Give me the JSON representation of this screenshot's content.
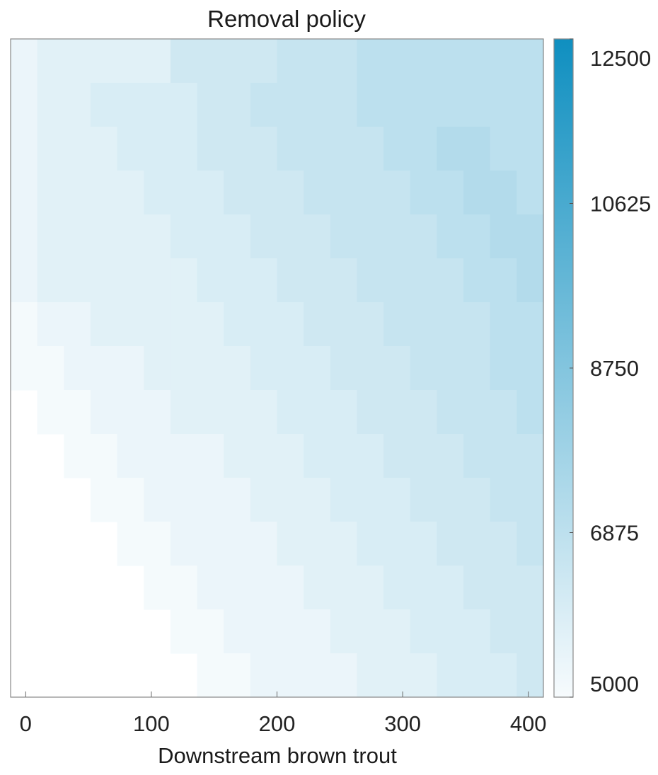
{
  "chart_data": {
    "type": "heatmap",
    "title": "Removal policy",
    "xlabel": "Downstream brown trout",
    "ylabel": "",
    "x_ticks": [
      0,
      100,
      200,
      300,
      400
    ],
    "x_range": [
      -12,
      412
    ],
    "colorbar": {
      "range": [
        5000,
        12500
      ],
      "ticks": [
        5000,
        6875,
        8750,
        10625,
        12500
      ],
      "color_low": "#f7fbfd",
      "color_high": "#0f8fc0"
    },
    "grid": "off",
    "colorbar_position": "right",
    "color_scale_note": "blank cells (lower-left) have no value",
    "rows_top_to_bottom": 15,
    "bands": {
      "boundaries_x": [
        12,
        34,
        56,
        78,
        100,
        122,
        144,
        166,
        188,
        210,
        232,
        254,
        276,
        298,
        320,
        342,
        364,
        386
      ],
      "band_values": [
        5300,
        5600,
        5800,
        6000,
        6200,
        6400,
        6600,
        6800,
        7000,
        7200,
        7400,
        7600,
        7800,
        8000,
        8200,
        8400,
        8600,
        8800,
        9000
      ]
    },
    "cells": [
      [
        5400,
        5700,
        5700,
        5700,
        5700,
        5700,
        6300,
        6300,
        6300,
        6300,
        6600,
        6600,
        6600,
        6900,
        6900,
        6900,
        6900,
        6900,
        6900,
        6900
      ],
      [
        5400,
        5700,
        5700,
        6000,
        6000,
        6000,
        6000,
        6300,
        6300,
        6600,
        6600,
        6600,
        6600,
        6900,
        6900,
        6900,
        6900,
        6900,
        6900,
        6900
      ],
      [
        5400,
        5700,
        5700,
        5700,
        6000,
        6000,
        6000,
        6300,
        6300,
        6300,
        6600,
        6600,
        6600,
        6600,
        6900,
        6900,
        7200,
        7200,
        6900,
        6900
      ],
      [
        5400,
        5700,
        5700,
        5700,
        5700,
        6000,
        6000,
        6000,
        6300,
        6300,
        6300,
        6600,
        6600,
        6600,
        6600,
        6900,
        6900,
        7200,
        7200,
        6900
      ],
      [
        5400,
        5700,
        5700,
        5700,
        5700,
        5700,
        6000,
        6000,
        6000,
        6300,
        6300,
        6300,
        6600,
        6600,
        6600,
        6600,
        6900,
        6900,
        7200,
        7200
      ],
      [
        5400,
        5700,
        5700,
        5700,
        5700,
        5700,
        5700,
        6000,
        6000,
        6000,
        6300,
        6300,
        6300,
        6600,
        6600,
        6600,
        6600,
        6900,
        6900,
        7200
      ],
      [
        5100,
        5400,
        5400,
        5700,
        5700,
        5700,
        5700,
        5700,
        6000,
        6000,
        6000,
        6300,
        6300,
        6300,
        6600,
        6600,
        6600,
        6600,
        6900,
        6900
      ],
      [
        5100,
        5100,
        5400,
        5400,
        5400,
        5700,
        5700,
        5700,
        5700,
        6000,
        6000,
        6000,
        6300,
        6300,
        6300,
        6600,
        6600,
        6600,
        6900,
        6900
      ],
      [
        null,
        5100,
        5100,
        5400,
        5400,
        5400,
        5700,
        5700,
        5700,
        5700,
        6000,
        6000,
        6000,
        6300,
        6300,
        6300,
        6600,
        6600,
        6600,
        6900
      ],
      [
        null,
        null,
        5100,
        5100,
        5400,
        5400,
        5400,
        5400,
        5700,
        5700,
        5700,
        6000,
        6000,
        6000,
        6300,
        6300,
        6300,
        6600,
        6600,
        6600
      ],
      [
        null,
        null,
        null,
        5100,
        5100,
        5400,
        5400,
        5400,
        5400,
        5700,
        5700,
        5700,
        6000,
        6000,
        6000,
        6300,
        6300,
        6300,
        6600,
        6600
      ],
      [
        null,
        null,
        null,
        null,
        5100,
        5100,
        5400,
        5400,
        5400,
        5400,
        5700,
        5700,
        5700,
        6000,
        6000,
        6000,
        6300,
        6300,
        6300,
        6600
      ],
      [
        null,
        null,
        null,
        null,
        null,
        5100,
        5100,
        5400,
        5400,
        5400,
        5400,
        5700,
        5700,
        5700,
        6000,
        6000,
        6000,
        6300,
        6300,
        6300
      ],
      [
        null,
        null,
        null,
        null,
        null,
        null,
        5100,
        5100,
        5400,
        5400,
        5400,
        5400,
        5700,
        5700,
        5700,
        6000,
        6000,
        6000,
        6300,
        6300
      ],
      [
        null,
        null,
        null,
        null,
        null,
        null,
        null,
        5100,
        5100,
        5400,
        5400,
        5400,
        5400,
        5700,
        5700,
        5700,
        6000,
        6000,
        6000,
        6300
      ]
    ]
  }
}
